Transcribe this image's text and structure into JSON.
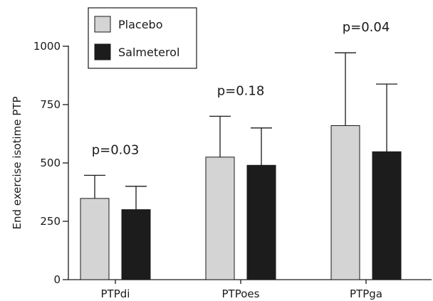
{
  "chart_data": {
    "type": "bar",
    "categories": [
      "PTPdi",
      "PTPoes",
      "PTPga"
    ],
    "series": [
      {
        "name": "Placebo",
        "color": "#d4d4d4",
        "values": [
          348,
          525,
          660
        ],
        "error_upper": [
          447,
          700,
          972
        ]
      },
      {
        "name": "Salmeterol",
        "color": "#1c1c1c",
        "values": [
          300,
          490,
          548
        ],
        "error_upper": [
          400,
          650,
          838
        ]
      }
    ],
    "annotations": [
      "p=0.03",
      "p=0.18",
      "p=0.04"
    ],
    "ylabel": "End exercise isotime PTP",
    "xlabel": "",
    "ylim": [
      0,
      1000
    ],
    "yticks": [
      0,
      250,
      500,
      750,
      1000
    ],
    "legend_position": "top-left",
    "grid": false
  }
}
